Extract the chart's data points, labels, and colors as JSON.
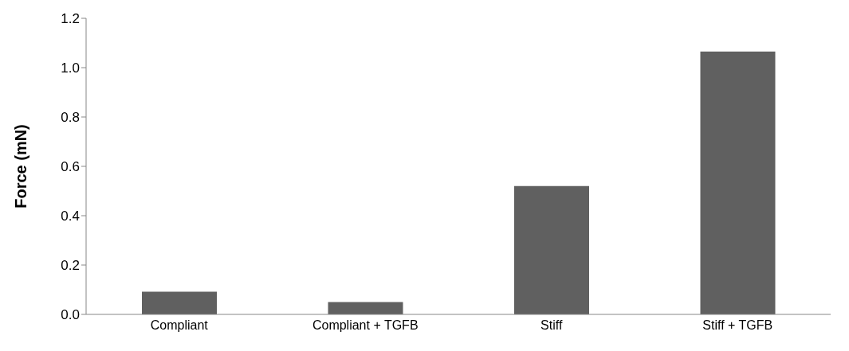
{
  "chart_data": {
    "type": "bar",
    "ylabel": "Force (mN)",
    "categories": [
      "Compliant",
      "Compliant +  TGFB",
      "Stiff",
      "Stiff + TGFB"
    ],
    "values": [
      0.092,
      0.05,
      0.52,
      1.065
    ],
    "color": "#606060",
    "ylim": [
      0,
      1.2
    ],
    "yticks": [
      {
        "value": 0,
        "label": "0.0"
      },
      {
        "value": 0.2,
        "label": "0.2"
      },
      {
        "value": 0.4,
        "label": "0.4"
      },
      {
        "value": 0.6,
        "label": "0.6"
      },
      {
        "value": 0.8,
        "label": "0.8"
      },
      {
        "value": 1,
        "label": "1.0"
      },
      {
        "value": 1.2,
        "label": "1.2"
      }
    ],
    "grid": false,
    "legend": false
  }
}
